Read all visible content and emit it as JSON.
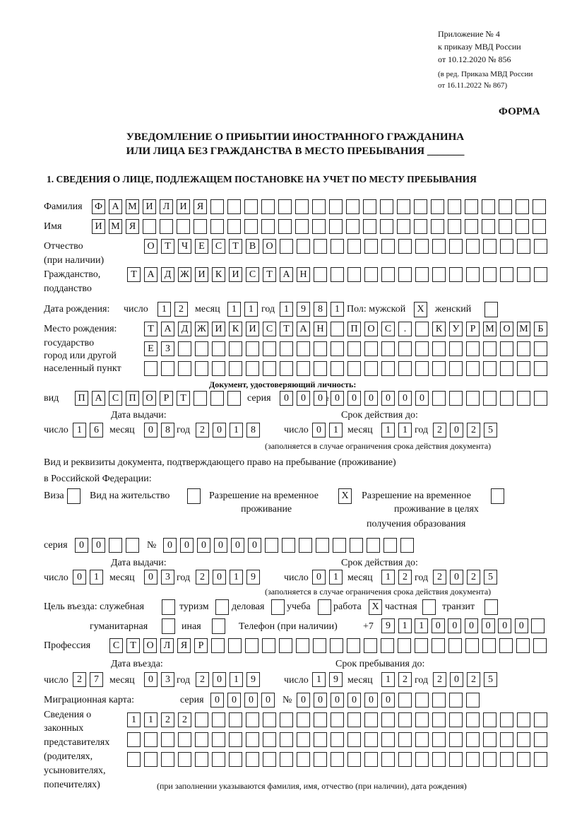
{
  "header": {
    "appendix": "Приложение № 4",
    "order": "к приказу МВД России",
    "order_date": "от 10.12.2020 № 856",
    "revision_1": "(в ред. Приказа МВД России",
    "revision_2": "от 16.11.2022 № 867)",
    "form_label": "ФОРМА",
    "title_1": "УВЕДОМЛЕНИЕ О ПРИБЫТИИ ИНОСТРАННОГО ГРАЖДАНИНА",
    "title_2": "ИЛИ ЛИЦА БЕЗ ГРАЖДАНСТВА В МЕСТО ПРЕБЫВАНИЯ _______",
    "section_1": "1. СВЕДЕНИЯ О ЛИЦЕ, ПОДЛЕЖАЩЕМ ПОСТАНОВКЕ НА УЧЕТ ПО МЕСТУ ПРЕБЫВАНИЯ"
  },
  "labels": {
    "surname": "Фамилия",
    "name": "Имя",
    "patronymic_1": "Отчество",
    "patronymic_2": "(при наличии)",
    "citizenship_1": "Гражданство,",
    "citizenship_2": "подданство",
    "birth_date": "Дата рождения:",
    "day": "число",
    "month": "месяц",
    "year": "год",
    "sex": "Пол: мужской",
    "female": "женский",
    "birthplace_1": "Место рождения:",
    "birthplace_2": "государство",
    "birthplace_3": "город или другой",
    "birthplace_4": "населенный пункт",
    "id_doc": "Документ, удостоверяющий личность:",
    "kind": "вид",
    "series": "серия",
    "number": "№",
    "issue_date": "Дата выдачи:",
    "valid_until": "Срок действия до:",
    "validity_note": "(заполняется в случае ограничения срока действия документа)",
    "right_doc_1": "Вид и реквизиты документа, подтверждающего право на пребывание (проживание)",
    "right_doc_2": "в Российской Федерации:",
    "visa": "Виза",
    "residence_permit": "Вид на жительство",
    "temp_permit_1": "Разрешение на временное",
    "temp_permit_2": "проживание",
    "temp_edu_1": "Разрешение на временное",
    "temp_edu_2": "проживание в целях",
    "temp_edu_3": "получения образования",
    "purpose": "Цель въезда: служебная",
    "tourism": "туризм",
    "business": "деловая",
    "study": "учеба",
    "work": "работа",
    "private": "частная",
    "transit": "транзит",
    "humanitarian": "гуманитарная",
    "other": "иная",
    "phone": "Телефон (при наличии)",
    "phone_prefix": "+7",
    "profession": "Профессия",
    "entry_date": "Дата въезда:",
    "stay_until": "Срок пребывания до:",
    "migration_card": "Миграционная карта:",
    "reps_1": "Сведения о",
    "reps_2": "законных",
    "reps_3": "представителях",
    "reps_4": "(родителях,",
    "reps_5": "усыновителях,",
    "reps_6": "попечителях)",
    "reps_note": "(при заполнении указываются фамилия, имя, отчество (при наличии), дата рождения)"
  },
  "fields": {
    "surname": "ФАМИЛИЯ",
    "name": "ИМЯ",
    "patronymic": "ОТЧЕСТВО",
    "citizenship": "ТАДЖИКИСТАН",
    "birth_day": "12",
    "birth_month": "11",
    "birth_year": "1981",
    "sex_male": "X",
    "sex_female": "",
    "birthplace_1": "ТАДЖИКИСТАН ПОС. КУРМОМБ",
    "birthplace_2": "ЕЗ",
    "birthplace_3": "",
    "id_kind": "ПАСПОРТ",
    "id_series": "0000",
    "id_number": "000000",
    "id_issue_day": "16",
    "id_issue_month": "08",
    "id_issue_year": "2018",
    "id_valid_day": "01",
    "id_valid_month": "11",
    "id_valid_year": "2025",
    "visa": "",
    "residence_permit": "",
    "temp_permit": "X",
    "temp_edu": "",
    "rd_series": "00",
    "rd_number": "000000",
    "rd_issue_day": "01",
    "rd_issue_month": "03",
    "rd_issue_year": "2019",
    "rd_valid_day": "01",
    "rd_valid_month": "12",
    "rd_valid_year": "2025",
    "p_official": "",
    "p_tourism": "",
    "p_business": "",
    "p_study": "",
    "p_work": "X",
    "p_private": "",
    "p_transit": "",
    "p_humanitarian": "",
    "p_other": "",
    "phone": "911000000",
    "profession": "СТОЛЯР",
    "entry_day": "27",
    "entry_month": "03",
    "entry_year": "2019",
    "stay_day": "19",
    "stay_month": "12",
    "stay_year": "2025",
    "mc_series": "0000",
    "mc_number": "000000",
    "reps_1": "1122",
    "reps_2": "",
    "reps_3": ""
  }
}
